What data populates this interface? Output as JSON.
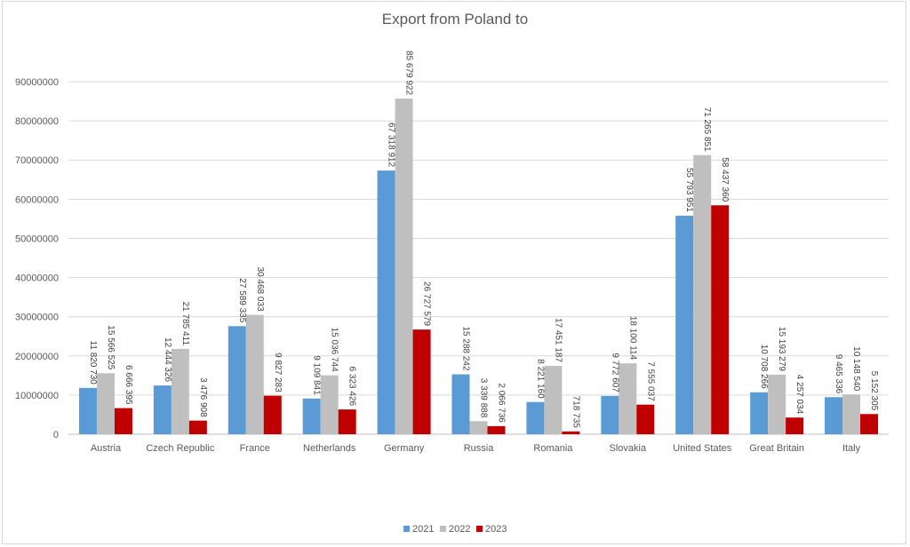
{
  "chart_data": {
    "type": "bar",
    "title": "Export from Poland to",
    "xlabel": "",
    "ylabel": "",
    "ylim": [
      0,
      90000000
    ],
    "yticks": [
      0,
      10000000,
      20000000,
      30000000,
      40000000,
      50000000,
      60000000,
      70000000,
      80000000,
      90000000
    ],
    "ytick_labels": [
      "0",
      "10000000",
      "20000000",
      "30000000",
      "40000000",
      "50000000",
      "60000000",
      "70000000",
      "80000000",
      "90000000"
    ],
    "grid": true,
    "legend_position": "bottom",
    "categories": [
      "Austria",
      "Czech Republic",
      "France",
      "Netherlands",
      "Germany",
      "Russia",
      "Romania",
      "Slovakia",
      "United States",
      "Great Britain",
      "Italy"
    ],
    "series": [
      {
        "name": "2021",
        "color": "#5b9bd5",
        "values": [
          11820730,
          12444326,
          27589335,
          9109841,
          67318912,
          15288242,
          8221160,
          9772607,
          55793951,
          10708266,
          9465336
        ],
        "labels": [
          "11 820 730",
          "12 444 326",
          "27 589 335",
          "9 109 841",
          "67 318 912",
          "15 288 242",
          "8 221 160",
          "9 772 607",
          "55 793 951",
          "10 708 266",
          "9 465 336"
        ]
      },
      {
        "name": "2022",
        "color": "#bfbfbf",
        "values": [
          15566525,
          21785411,
          30468033,
          15036744,
          85679922,
          3339888,
          17451187,
          18100114,
          71265851,
          15193279,
          10148540
        ],
        "labels": [
          "15 566 525",
          "21 785 411",
          "30 468 033",
          "15 036 744",
          "85 679 922",
          "3 339 888",
          "17 451 187",
          "18 100 114",
          "71 265 851",
          "15 193 279",
          "10 148 540"
        ]
      },
      {
        "name": "2023",
        "color": "#c00000",
        "values": [
          6666395,
          3476908,
          9827283,
          6323426,
          26727579,
          2066736,
          718735,
          7555037,
          58437360,
          4257034,
          5152305
        ],
        "labels": [
          "6 666 395",
          "3 476 908",
          "9 827 283",
          "6 323 426",
          "26 727 579",
          "2 066 736",
          "718 735",
          "7 555 037",
          "58 437 360",
          "4 257 034",
          "5 152 305"
        ]
      }
    ]
  }
}
